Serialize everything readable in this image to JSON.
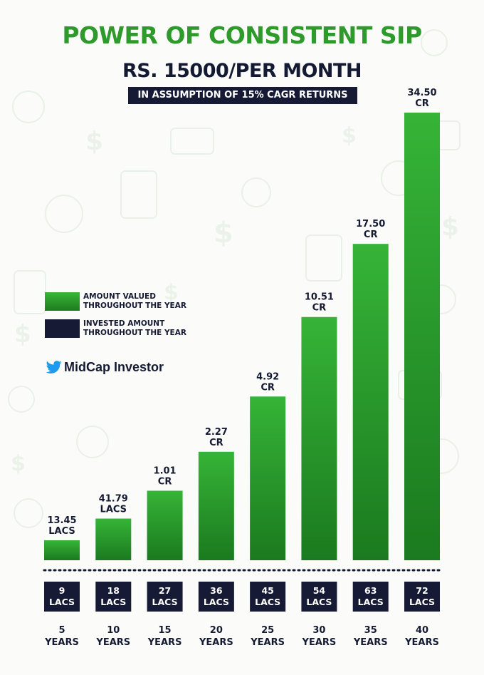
{
  "title": "POWER OF CONSISTENT SIP",
  "subtitle": "RS. 15000/PER MONTH",
  "assumption": "IN ASSUMPTION OF 15% CAGR RETURNS",
  "legend": [
    {
      "label_line1": "AMOUNT VALUED",
      "label_line2": "THROUGHOUT THE YEAR",
      "color": "#2a9c2c"
    },
    {
      "label_line1": "INVESTED AMOUNT",
      "label_line2": "THROUGHOUT THE YEAR",
      "color": "#161a35"
    }
  ],
  "brand": {
    "name": "MidCap Investor",
    "icon": "twitter-bird-icon",
    "color": "#1d9bf0"
  },
  "colors": {
    "green": "#2a9c2c",
    "green_dark": "#1c7a20",
    "navy": "#161a35",
    "title_green": "#2e9a2b"
  },
  "chart_data": {
    "type": "bar",
    "categories": [
      [
        "5",
        "YEARS"
      ],
      [
        "10",
        "YEARS"
      ],
      [
        "15",
        "YEARS"
      ],
      [
        "20",
        "YEARS"
      ],
      [
        "25",
        "YEARS"
      ],
      [
        "30",
        "YEARS"
      ],
      [
        "35",
        "YEARS"
      ],
      [
        "40",
        "YEARS"
      ]
    ],
    "series": [
      {
        "values_in_lacs": [
          13.45,
          41.79,
          101,
          227,
          492,
          1051,
          1750,
          3450
        ],
        "labels": [
          [
            "13.45",
            "LACS"
          ],
          [
            "41.79",
            "LACS"
          ],
          [
            "1.01",
            "CR"
          ],
          [
            "2.27",
            "CR"
          ],
          [
            "4.92",
            "CR"
          ],
          [
            "10.51",
            "CR"
          ],
          [
            "17.50",
            "CR"
          ],
          [
            "34.50",
            "CR"
          ]
        ]
      },
      {
        "values_in_lacs": [
          9,
          18,
          27,
          36,
          45,
          54,
          63,
          72
        ],
        "labels": [
          [
            "9",
            "LACS"
          ],
          [
            "18",
            "LACS"
          ],
          [
            "27",
            "LACS"
          ],
          [
            "36",
            "LACS"
          ],
          [
            "45",
            "LACS"
          ],
          [
            "54",
            "LACS"
          ],
          [
            "63",
            "LACS"
          ],
          [
            "72",
            "LACS"
          ]
        ]
      }
    ]
  }
}
